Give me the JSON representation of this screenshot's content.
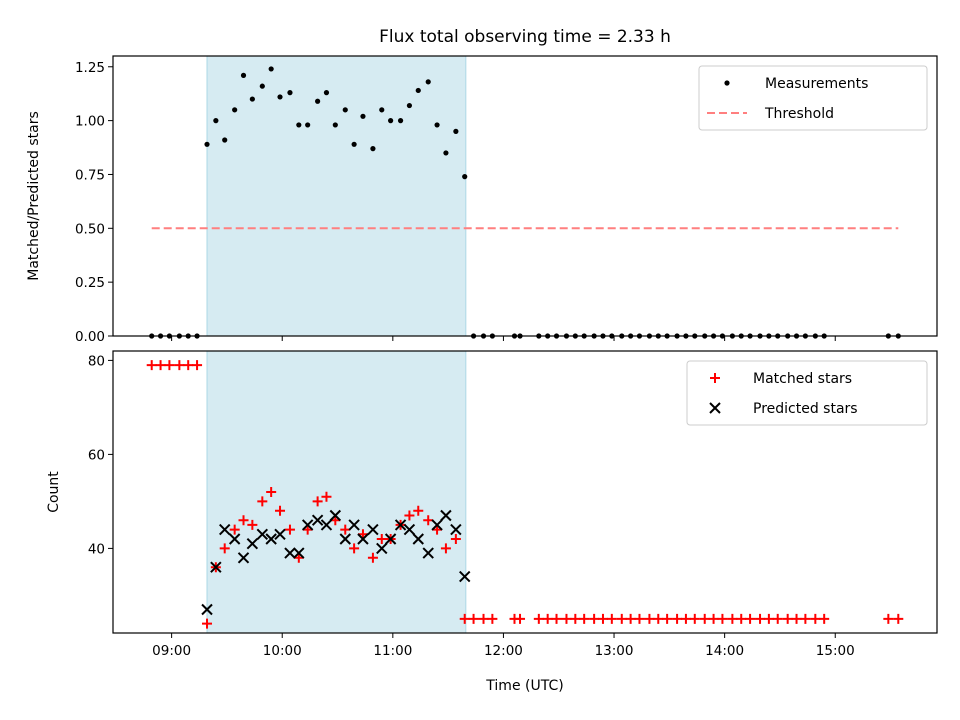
{
  "chart_data": [
    {
      "type": "scatter",
      "panel": "top",
      "title": "Flux total observing time = 2.33 h",
      "xlabel": "",
      "ylabel": "Matched/Predicted stars",
      "xlim": [
        8.47,
        15.92
      ],
      "ylim": [
        0.0,
        1.3
      ],
      "yticks": [
        0.0,
        0.25,
        0.5,
        0.75,
        1.0,
        1.25
      ],
      "ytick_labels": [
        "0.00",
        "0.25",
        "0.50",
        "0.75",
        "1.00",
        "1.25"
      ],
      "grid": false,
      "legend_position": "top-right",
      "shaded_region": {
        "x_start": 9.32,
        "x_end": 11.66,
        "color": "#add8e6"
      },
      "series": [
        {
          "name": "Measurements",
          "marker": "dot",
          "color": "#000000",
          "x": [
            8.82,
            8.9,
            8.98,
            9.07,
            9.15,
            9.23,
            9.32,
            9.4,
            9.48,
            9.57,
            9.65,
            9.73,
            9.82,
            9.9,
            9.98,
            10.07,
            10.15,
            10.23,
            10.32,
            10.4,
            10.48,
            10.57,
            10.65,
            10.73,
            10.82,
            10.9,
            10.98,
            11.07,
            11.15,
            11.23,
            11.32,
            11.4,
            11.48,
            11.57,
            11.65,
            11.73,
            11.82,
            11.9,
            12.1,
            12.15,
            12.32,
            12.4,
            12.48,
            12.57,
            12.65,
            12.73,
            12.82,
            12.9,
            12.98,
            13.07,
            13.15,
            13.23,
            13.32,
            13.4,
            13.48,
            13.57,
            13.65,
            13.73,
            13.82,
            13.9,
            13.98,
            14.07,
            14.15,
            14.23,
            14.32,
            14.4,
            14.48,
            14.57,
            14.65,
            14.73,
            14.82,
            14.9,
            15.48,
            15.57
          ],
          "y": [
            0,
            0,
            0,
            0,
            0,
            0,
            0.89,
            1.0,
            0.91,
            1.05,
            1.21,
            1.1,
            1.16,
            1.24,
            1.11,
            1.13,
            0.98,
            0.98,
            1.09,
            1.13,
            0.98,
            1.05,
            0.89,
            1.02,
            0.87,
            1.05,
            1.0,
            1.0,
            1.07,
            1.14,
            1.18,
            0.98,
            0.85,
            0.95,
            0.74,
            0,
            0,
            0,
            0,
            0,
            0,
            0,
            0,
            0,
            0,
            0,
            0,
            0,
            0,
            0,
            0,
            0,
            0,
            0,
            0,
            0,
            0,
            0,
            0,
            0,
            0,
            0,
            0,
            0,
            0,
            0,
            0,
            0,
            0,
            0,
            0,
            0,
            0,
            0
          ]
        },
        {
          "name": "Threshold",
          "style": "dashed-line",
          "color": "#ff7f7f",
          "x": [
            8.82,
            15.57
          ],
          "y": [
            0.5,
            0.5
          ]
        }
      ]
    },
    {
      "type": "scatter",
      "panel": "bottom",
      "title": "",
      "xlabel": "Time (UTC)",
      "ylabel": "Count",
      "xlim": [
        8.47,
        15.92
      ],
      "ylim": [
        22.0,
        82.0
      ],
      "xticks": [
        9,
        10,
        11,
        12,
        13,
        14,
        15
      ],
      "xtick_labels": [
        "09:00",
        "10:00",
        "11:00",
        "12:00",
        "13:00",
        "14:00",
        "15:00"
      ],
      "yticks": [
        40,
        60,
        80
      ],
      "ytick_labels": [
        "40",
        "60",
        "80"
      ],
      "grid": false,
      "legend_position": "top-right",
      "shaded_region": {
        "x_start": 9.32,
        "x_end": 11.66,
        "color": "#add8e6"
      },
      "series": [
        {
          "name": "Matched stars",
          "marker": "plus",
          "color": "#ff0000",
          "x": [
            8.82,
            8.9,
            8.98,
            9.07,
            9.15,
            9.23,
            9.32,
            9.4,
            9.48,
            9.57,
            9.65,
            9.73,
            9.82,
            9.9,
            9.98,
            10.07,
            10.15,
            10.23,
            10.32,
            10.4,
            10.48,
            10.57,
            10.65,
            10.73,
            10.82,
            10.9,
            10.98,
            11.07,
            11.15,
            11.23,
            11.32,
            11.4,
            11.48,
            11.57,
            11.65,
            11.73,
            11.82,
            11.9,
            12.1,
            12.15,
            12.32,
            12.4,
            12.48,
            12.57,
            12.65,
            12.73,
            12.82,
            12.9,
            12.98,
            13.07,
            13.15,
            13.23,
            13.32,
            13.4,
            13.48,
            13.57,
            13.65,
            13.73,
            13.82,
            13.9,
            13.98,
            14.07,
            14.15,
            14.23,
            14.32,
            14.4,
            14.48,
            14.57,
            14.65,
            14.73,
            14.82,
            14.9,
            15.48,
            15.57
          ],
          "y": [
            79,
            79,
            79,
            79,
            79,
            79,
            24,
            36,
            40,
            44,
            46,
            45,
            50,
            52,
            48,
            44,
            38,
            44,
            50,
            51,
            46,
            44,
            40,
            43,
            38,
            42,
            42,
            45,
            47,
            48,
            46,
            44,
            40,
            42,
            25,
            25,
            25,
            25,
            25,
            25,
            25,
            25,
            25,
            25,
            25,
            25,
            25,
            25,
            25,
            25,
            25,
            25,
            25,
            25,
            25,
            25,
            25,
            25,
            25,
            25,
            25,
            25,
            25,
            25,
            25,
            25,
            25,
            25,
            25,
            25,
            25,
            25,
            25,
            25
          ]
        },
        {
          "name": "Predicted stars",
          "marker": "x",
          "color": "#000000",
          "x": [
            9.32,
            9.4,
            9.48,
            9.57,
            9.65,
            9.73,
            9.82,
            9.9,
            9.98,
            10.07,
            10.15,
            10.23,
            10.32,
            10.4,
            10.48,
            10.57,
            10.65,
            10.73,
            10.82,
            10.9,
            10.98,
            11.07,
            11.15,
            11.23,
            11.32,
            11.4,
            11.48,
            11.57,
            11.65
          ],
          "y": [
            27,
            36,
            44,
            42,
            38,
            41,
            43,
            42,
            43,
            39,
            39,
            45,
            46,
            45,
            47,
            42,
            45,
            42,
            44,
            40,
            42,
            45,
            44,
            42,
            39,
            45,
            47,
            44,
            34
          ]
        }
      ]
    }
  ]
}
